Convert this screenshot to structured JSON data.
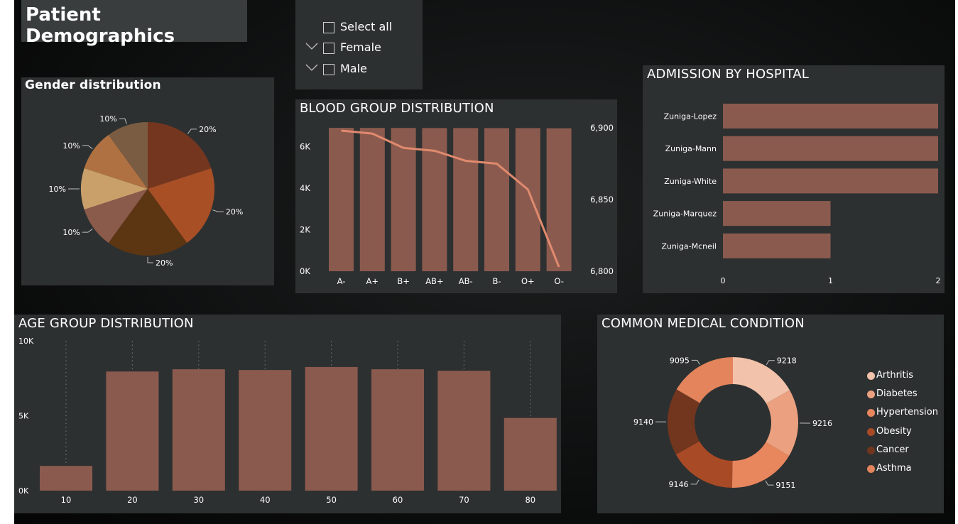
{
  "page": {
    "title": "Patient Demographics"
  },
  "slicer": {
    "items": [
      {
        "label": "Select all",
        "chevron": false
      },
      {
        "label": "Female",
        "chevron": true
      },
      {
        "label": "Male",
        "chevron": true
      }
    ]
  },
  "chart_data": [
    {
      "id": "gender",
      "type": "pie",
      "title": "Gender distribution",
      "slices": [
        {
          "value": 20,
          "label": "20%",
          "color": "#74361e"
        },
        {
          "value": 20,
          "label": "20%",
          "color": "#a94f26"
        },
        {
          "value": 20,
          "label": "20%",
          "color": "#5c3512"
        },
        {
          "value": 10,
          "label": "10%",
          "color": "#8a5a4b"
        },
        {
          "value": 10,
          "label": "10%",
          "color": "#c9a06a"
        },
        {
          "value": 10,
          "label": "10%",
          "color": "#b07142"
        },
        {
          "value": 10,
          "label": "10%",
          "color": "#7a5c42"
        }
      ]
    },
    {
      "id": "blood",
      "type": "bar",
      "title": "BLOOD GROUP DISTRIBUTION",
      "categories": [
        "A-",
        "A+",
        "B+",
        "AB+",
        "AB-",
        "B-",
        "O+",
        "O-"
      ],
      "bar_values": [
        6898,
        6894,
        6892,
        6888,
        6888,
        6886,
        6886,
        6878
      ],
      "line_values": [
        6898,
        6896,
        6886,
        6884,
        6877,
        6875,
        6857,
        6803
      ],
      "y_left": {
        "ticks": [
          "0K",
          "2K",
          "4K",
          "6K"
        ],
        "lim": [
          0,
          6900
        ]
      },
      "y_right": {
        "ticks": [
          "6,900",
          "6,850",
          "6,800"
        ],
        "lim": [
          6800,
          6900
        ]
      },
      "bar_color": "#8b5a4e",
      "line_color": "#e08a6e"
    },
    {
      "id": "hospital",
      "type": "bar",
      "orientation": "horizontal",
      "title": "ADMISSION BY HOSPITAL",
      "categories": [
        "Zuniga-Lopez",
        "Zuniga-Mann",
        "Zuniga-White",
        "Zuniga-Marquez",
        "Zuniga-Mcneil"
      ],
      "values": [
        2,
        2,
        2,
        1,
        1
      ],
      "x_ticks": [
        "0",
        "1",
        "2"
      ],
      "xlim": [
        0,
        2
      ],
      "bar_color": "#8b5a4e"
    },
    {
      "id": "age",
      "type": "bar",
      "title": "AGE GROUP DISTRIBUTION",
      "categories": [
        "10",
        "20",
        "30",
        "40",
        "50",
        "60",
        "70",
        "80"
      ],
      "values": [
        1650,
        7950,
        8100,
        8050,
        8250,
        8100,
        8000,
        4850
      ],
      "y_ticks": [
        "0K",
        "5K",
        "10K"
      ],
      "ylim": [
        0,
        10000
      ],
      "bar_color": "#8b5a4e"
    },
    {
      "id": "condition",
      "type": "pie",
      "subtype": "donut",
      "title": "COMMON MEDICAL CONDITION",
      "slices": [
        {
          "name": "Arthritis",
          "value": 9218,
          "label": "9218",
          "color": "#f2c2aa"
        },
        {
          "name": "Diabetes",
          "value": 9216,
          "label": "9216",
          "color": "#eba180"
        },
        {
          "name": "Hypertension",
          "value": 9151,
          "label": "9151",
          "color": "#e8875e"
        },
        {
          "name": "Obesity",
          "value": 9146,
          "label": "9146",
          "color": "#a94a26"
        },
        {
          "name": "Cancer",
          "value": 9140,
          "label": "9140",
          "color": "#72361f"
        },
        {
          "name": "Asthma",
          "value": 9095,
          "label": "9095",
          "color": "#e3845c"
        }
      ],
      "legend": [
        "Arthritis",
        "Diabetes",
        "Hypertension",
        "Obesity",
        "Cancer",
        "Asthma"
      ]
    }
  ]
}
